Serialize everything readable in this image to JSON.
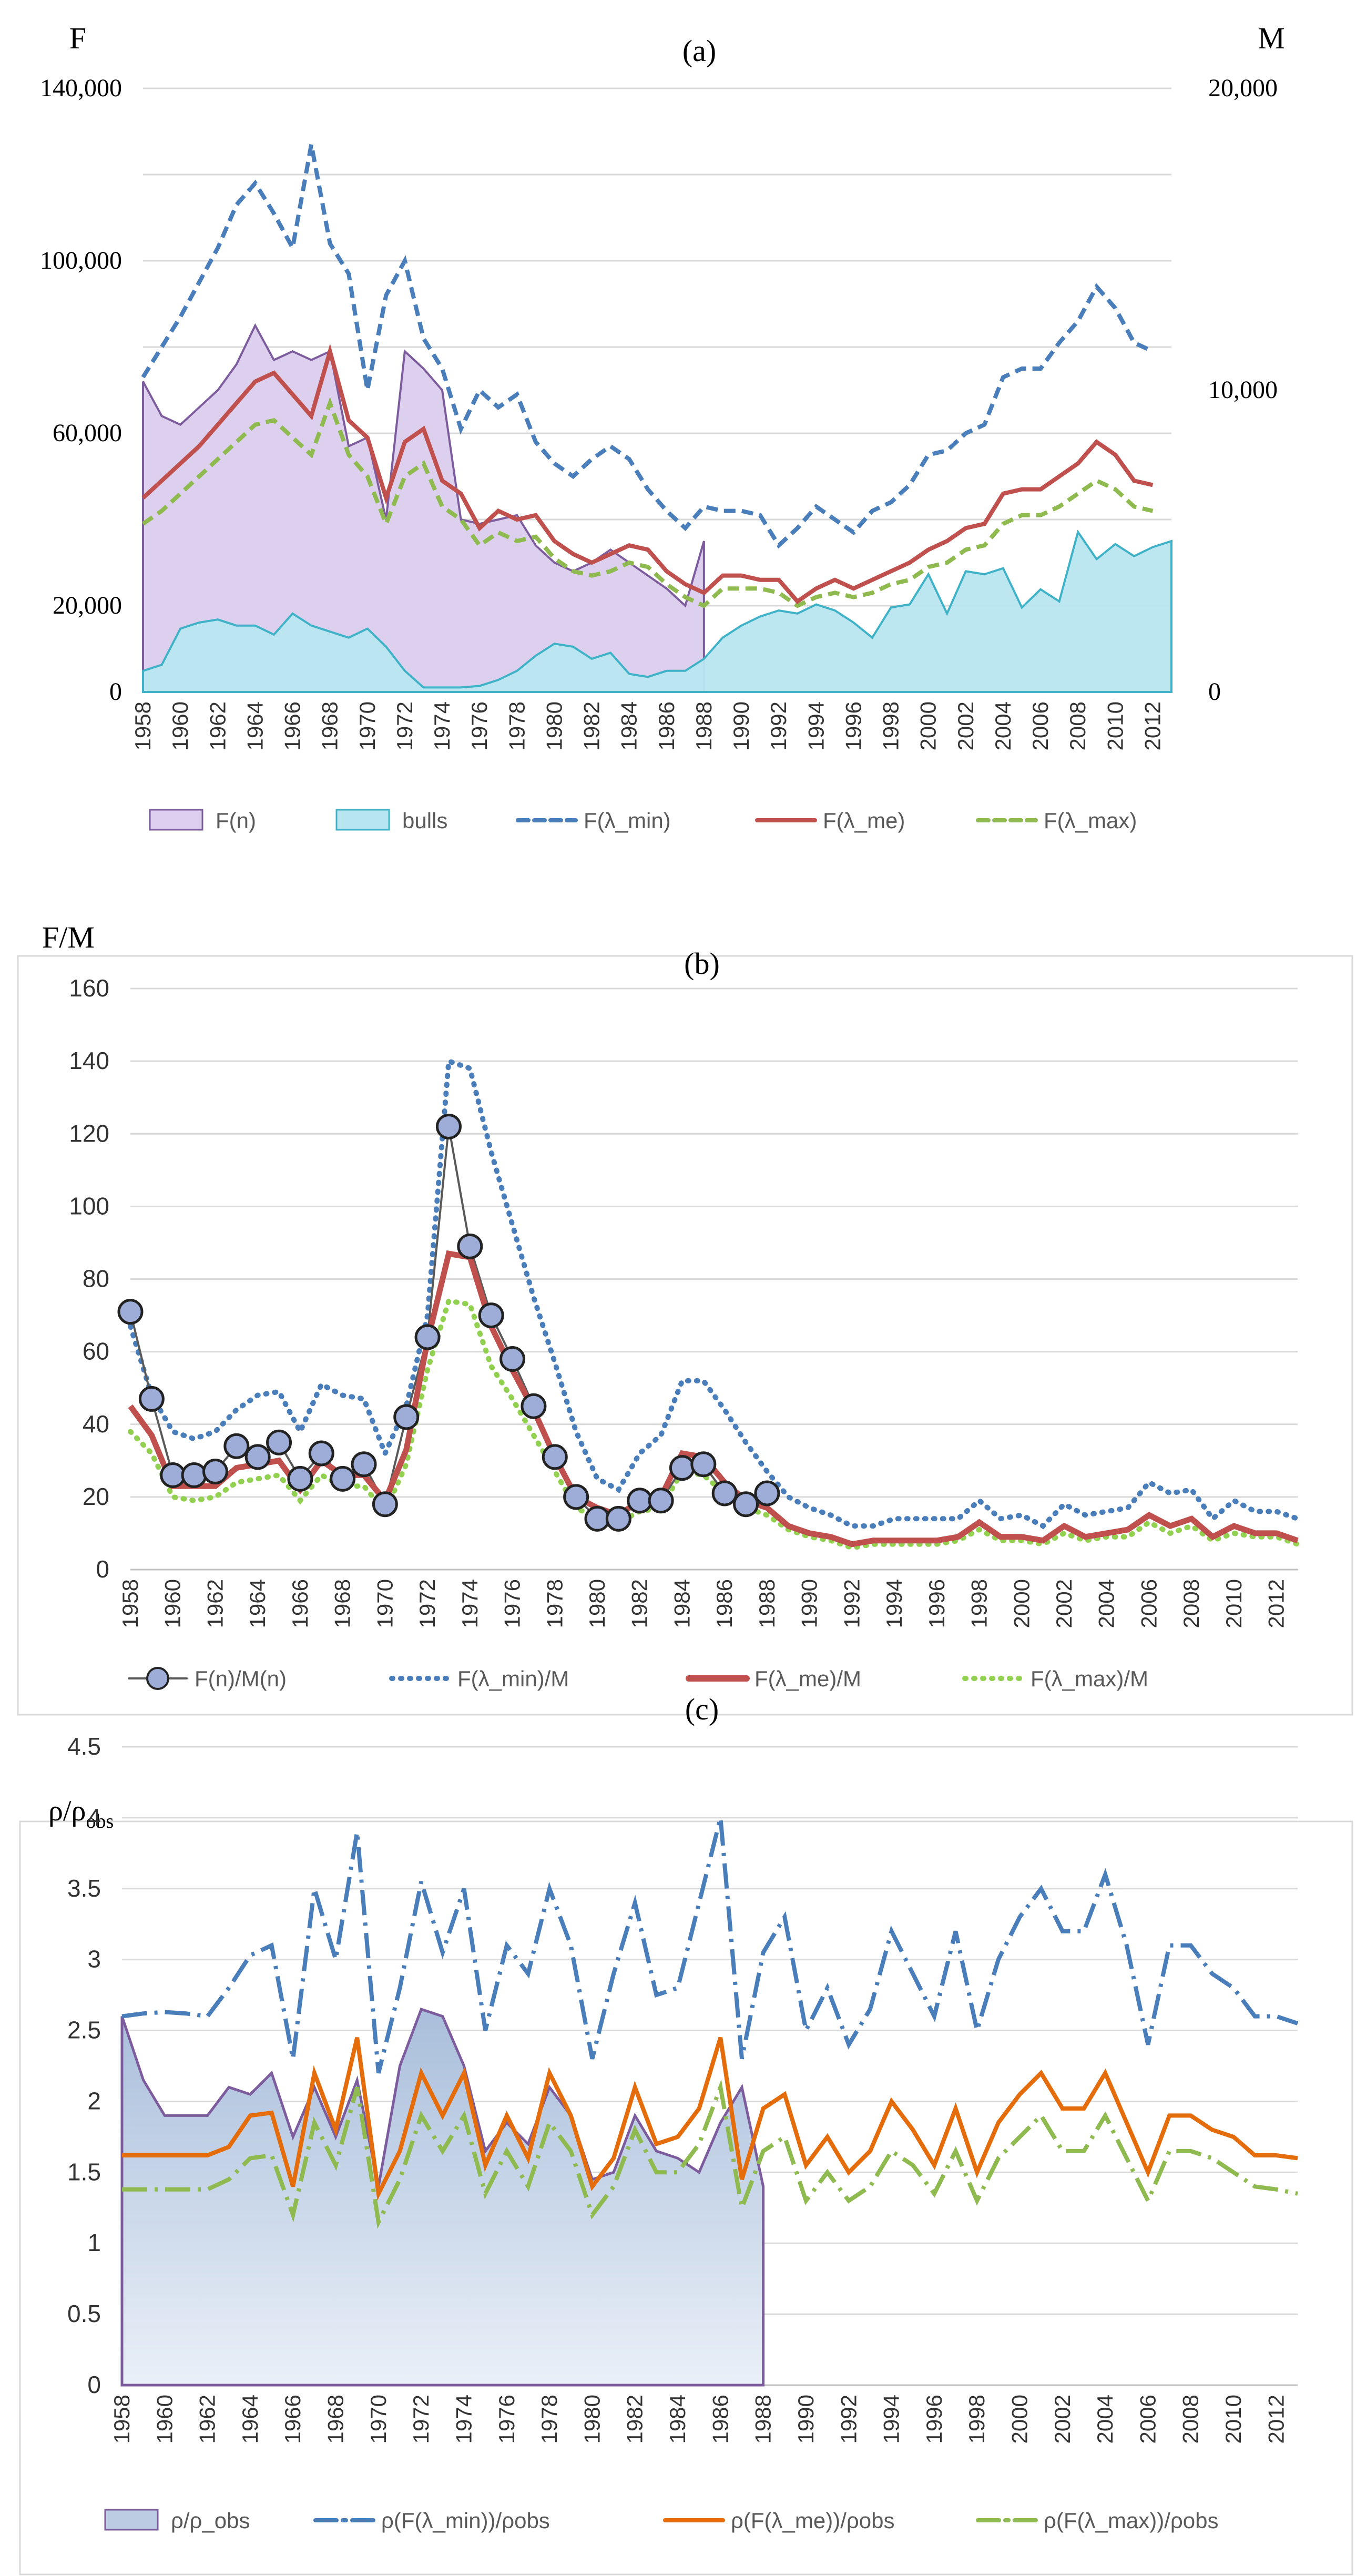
{
  "figure": {
    "years": [
      1958,
      1959,
      1960,
      1961,
      1962,
      1963,
      1964,
      1965,
      1966,
      1967,
      1968,
      1969,
      1970,
      1971,
      1972,
      1973,
      1974,
      1975,
      1976,
      1977,
      1978,
      1979,
      1980,
      1981,
      1982,
      1983,
      1984,
      1985,
      1986,
      1987,
      1988,
      1989,
      1990,
      1991,
      1992,
      1993,
      1994,
      1995,
      1996,
      1997,
      1998,
      1999,
      2000,
      2001,
      2002,
      2003,
      2004,
      2005,
      2006,
      2007,
      2008,
      2009,
      2010,
      2011,
      2012,
      2013
    ],
    "year_ticks": [
      "1958",
      "1960",
      "1962",
      "1964",
      "1966",
      "1968",
      "1970",
      "1972",
      "1974",
      "1976",
      "1978",
      "1980",
      "1982",
      "1984",
      "1986",
      "1988",
      "1990",
      "1992",
      "1994",
      "1996",
      "1998",
      "2000",
      "2002",
      "2004",
      "2006",
      "2008",
      "2010",
      "2012"
    ]
  },
  "chart_data": [
    {
      "type": "area",
      "panel_label": "(a)",
      "ylabel": "F",
      "ylabel_right": "M",
      "y_ticks": [
        "0",
        "20,000",
        "60,000",
        "100,000",
        "140,000"
      ],
      "y_right_ticks": [
        "0",
        "10,000",
        "20,000"
      ],
      "ylim": [
        0,
        140000
      ],
      "ylim_right": [
        0,
        20000
      ],
      "grid": true,
      "legend_position": "bottom",
      "colors": {
        "fn": "#7d5c9e",
        "fn_fill": "#ddd0ee",
        "bulls": "#3fb2c7",
        "bulls_fill": "#b8e6f0",
        "min": "#4a7ebb",
        "me": "#c0504d",
        "max": "#8fba4f"
      },
      "series": [
        {
          "name": "F(n)",
          "kind": "area",
          "axis": "left",
          "values": [
            72000,
            64000,
            62000,
            66000,
            70000,
            76000,
            85000,
            77000,
            79000,
            77000,
            79000,
            57000,
            59000,
            40000,
            79000,
            75000,
            70000,
            40000,
            39000,
            40000,
            41000,
            34000,
            30000,
            28000,
            30000,
            33000,
            30000,
            27000,
            24000,
            20000,
            35000,
            null,
            null,
            null,
            null,
            null,
            null,
            null,
            null,
            null,
            null,
            null,
            null,
            null,
            null,
            null,
            null,
            null,
            null,
            null,
            null,
            null,
            null,
            null,
            null,
            null
          ]
        },
        {
          "name": "bulls",
          "kind": "area",
          "axis": "right",
          "values": [
            700,
            900,
            2100,
            2300,
            2400,
            2200,
            2200,
            1900,
            2600,
            2200,
            2000,
            1800,
            2100,
            1500,
            700,
            150,
            150,
            150,
            200,
            400,
            700,
            1200,
            1600,
            1500,
            1100,
            1300,
            600,
            500,
            700,
            700,
            1100,
            1800,
            2200,
            2500,
            2700,
            2600,
            2900,
            2700,
            2300,
            1800,
            2800,
            2900,
            3900,
            2600,
            4000,
            3900,
            4100,
            2800,
            3400,
            3000,
            5300,
            4400,
            4900,
            4500,
            4800,
            5000
          ]
        },
        {
          "name": "F(λ_min)",
          "kind": "line",
          "dash": "dashed",
          "axis": "left",
          "values": [
            73000,
            80000,
            87000,
            95000,
            103000,
            113000,
            118000,
            111000,
            103000,
            127000,
            104000,
            97000,
            70000,
            92000,
            100000,
            82000,
            75000,
            61000,
            70000,
            66000,
            69000,
            58000,
            53000,
            50000,
            54000,
            57000,
            54000,
            47000,
            42000,
            38000,
            43000,
            42000,
            42000,
            41000,
            34000,
            38000,
            43000,
            40000,
            37000,
            42000,
            44000,
            48000,
            55000,
            56000,
            60000,
            62000,
            73000,
            75000,
            75000,
            81000,
            86000,
            94000,
            89000,
            81000,
            79000,
            null
          ]
        },
        {
          "name": "F(λ_me)",
          "kind": "line",
          "dash": "solid",
          "axis": "left",
          "values": [
            45000,
            49000,
            53000,
            57000,
            62000,
            67000,
            72000,
            74000,
            69000,
            64000,
            79000,
            63000,
            59000,
            45000,
            58000,
            61000,
            49000,
            46000,
            38000,
            42000,
            40000,
            41000,
            35000,
            32000,
            30000,
            32000,
            34000,
            33000,
            28000,
            25000,
            23000,
            27000,
            27000,
            26000,
            26000,
            21000,
            24000,
            26000,
            24000,
            26000,
            28000,
            30000,
            33000,
            35000,
            38000,
            39000,
            46000,
            47000,
            47000,
            50000,
            53000,
            58000,
            55000,
            49000,
            48000,
            null
          ]
        },
        {
          "name": "F(λ_max)",
          "kind": "line",
          "dash": "dashed",
          "axis": "left",
          "values": [
            39000,
            42000,
            46000,
            50000,
            54000,
            58000,
            62000,
            63000,
            59000,
            55000,
            67000,
            55000,
            50000,
            39000,
            50000,
            53000,
            43000,
            40000,
            34000,
            37000,
            35000,
            36000,
            31000,
            28000,
            27000,
            28000,
            30000,
            29000,
            25000,
            22000,
            20000,
            24000,
            24000,
            24000,
            23000,
            20000,
            22000,
            23000,
            22000,
            23000,
            25000,
            26000,
            29000,
            30000,
            33000,
            34000,
            39000,
            41000,
            41000,
            43000,
            46000,
            49000,
            47000,
            43000,
            42000,
            null
          ]
        }
      ]
    },
    {
      "type": "line",
      "panel_label": "(b)",
      "ylabel": "F/M",
      "y_ticks": [
        "0",
        "20",
        "40",
        "60",
        "80",
        "100",
        "120",
        "140",
        "160"
      ],
      "ylim": [
        0,
        160
      ],
      "grid": true,
      "legend_position": "bottom",
      "colors": {
        "n": "#595959",
        "n_marker": "#9dadd8",
        "min": "#4a7ebb",
        "me": "#c0504d",
        "max": "#92d050"
      },
      "series": [
        {
          "name": "F(n)/M(n)",
          "kind": "line-marker",
          "values": [
            71,
            47,
            26,
            26,
            27,
            34,
            31,
            35,
            25,
            32,
            25,
            29,
            18,
            42,
            64,
            122,
            89,
            70,
            58,
            45,
            31,
            20,
            14,
            14,
            19,
            19,
            28,
            29,
            21,
            18,
            21,
            null,
            null,
            null,
            null,
            null,
            null,
            null,
            null,
            null,
            null,
            null,
            null,
            null,
            null,
            null,
            null,
            null,
            null,
            null,
            null,
            null,
            null,
            null,
            null,
            null
          ]
        },
        {
          "name": "F(λ_min)/M",
          "kind": "line",
          "dash": "dotted",
          "values": [
            67,
            48,
            38,
            36,
            38,
            44,
            48,
            49,
            38,
            51,
            48,
            47,
            32,
            45,
            70,
            140,
            138,
            115,
            95,
            75,
            57,
            38,
            25,
            22,
            32,
            37,
            52,
            52,
            44,
            35,
            27,
            20,
            17,
            15,
            12,
            12,
            14,
            14,
            14,
            14,
            19,
            14,
            15,
            12,
            18,
            15,
            16,
            17,
            24,
            21,
            22,
            14,
            19,
            16,
            16,
            14
          ]
        },
        {
          "name": "F(λ_me)/M",
          "kind": "line",
          "dash": "solid",
          "values": [
            45,
            37,
            23,
            23,
            23,
            28,
            29,
            30,
            22,
            30,
            26,
            26,
            19,
            33,
            63,
            87,
            86,
            67,
            55,
            44,
            31,
            20,
            17,
            15,
            19,
            20,
            32,
            31,
            24,
            19,
            17,
            12,
            10,
            9,
            7,
            8,
            8,
            8,
            8,
            9,
            13,
            9,
            9,
            8,
            12,
            9,
            10,
            11,
            15,
            12,
            14,
            9,
            12,
            10,
            10,
            8
          ]
        },
        {
          "name": "F(λ_max)/M",
          "kind": "line",
          "dash": "dotted",
          "values": [
            38,
            32,
            20,
            19,
            20,
            24,
            25,
            26,
            19,
            26,
            23,
            23,
            16,
            29,
            55,
            74,
            73,
            56,
            47,
            37,
            27,
            17,
            14,
            13,
            16,
            17,
            27,
            26,
            21,
            17,
            15,
            11,
            9,
            8,
            6,
            7,
            7,
            7,
            7,
            8,
            11,
            8,
            8,
            7,
            10,
            8,
            9,
            9,
            13,
            10,
            12,
            8,
            10,
            9,
            9,
            7
          ]
        }
      ]
    },
    {
      "type": "line",
      "panel_label": "(c)",
      "ylabel": "ρ/ρ",
      "ylabel_sub": "obs",
      "y_ticks": [
        "0",
        "0.5",
        "1",
        "1.5",
        "2",
        "2.5",
        "3",
        "3.5",
        "4",
        "4.5"
      ],
      "ylim": [
        0,
        4.5
      ],
      "grid": true,
      "legend_position": "bottom",
      "colors": {
        "obs": "#7d5c9e",
        "obs_fill_top": "#a9bedb",
        "obs_fill_bottom": "#eaf0f8",
        "min": "#4a7ebb",
        "me": "#e46c0a",
        "max": "#8fba4f"
      },
      "series": [
        {
          "name": "ρ/ρ_obs",
          "kind": "area",
          "values": [
            2.6,
            2.15,
            1.9,
            1.9,
            1.9,
            2.1,
            2.05,
            2.2,
            1.75,
            2.1,
            1.75,
            2.15,
            1.4,
            2.25,
            2.65,
            2.6,
            2.25,
            1.65,
            1.85,
            1.7,
            2.1,
            1.9,
            1.45,
            1.5,
            1.9,
            1.65,
            1.6,
            1.5,
            1.85,
            2.1,
            1.4,
            null,
            null,
            null,
            null,
            null,
            null,
            null,
            null,
            null,
            null,
            null,
            null,
            null,
            null,
            null,
            null,
            null,
            null,
            null,
            null,
            null,
            null,
            null,
            null,
            null
          ]
        },
        {
          "name": "ρ(F(λ_min))/ρobs",
          "kind": "line",
          "dash": "dashdot",
          "values": [
            2.6,
            2.62,
            2.63,
            2.62,
            2.6,
            2.8,
            3.03,
            3.1,
            2.3,
            3.5,
            3.0,
            3.9,
            2.2,
            2.8,
            3.55,
            3.05,
            3.5,
            2.5,
            3.1,
            2.9,
            3.5,
            3.1,
            2.3,
            2.9,
            3.4,
            2.75,
            2.8,
            3.4,
            4.0,
            2.3,
            3.05,
            3.3,
            2.5,
            2.8,
            2.4,
            2.65,
            3.2,
            2.9,
            2.6,
            3.2,
            2.5,
            3.0,
            3.3,
            3.5,
            3.2,
            3.2,
            3.6,
            3.1,
            2.4,
            3.1,
            3.1,
            2.9,
            2.8,
            2.6,
            2.6,
            2.55
          ]
        },
        {
          "name": "ρ(F(λ_me))/ρobs",
          "kind": "line",
          "dash": "solid",
          "values": [
            1.62,
            1.62,
            1.62,
            1.62,
            1.62,
            1.68,
            1.9,
            1.92,
            1.4,
            2.2,
            1.8,
            2.45,
            1.35,
            1.65,
            2.2,
            1.9,
            2.2,
            1.55,
            1.9,
            1.6,
            2.2,
            1.9,
            1.4,
            1.6,
            2.1,
            1.7,
            1.75,
            1.95,
            2.45,
            1.45,
            1.95,
            2.05,
            1.55,
            1.75,
            1.5,
            1.65,
            2.0,
            1.8,
            1.55,
            1.95,
            1.5,
            1.85,
            2.05,
            2.2,
            1.95,
            1.95,
            2.2,
            1.85,
            1.5,
            1.9,
            1.9,
            1.8,
            1.75,
            1.62,
            1.62,
            1.6
          ]
        },
        {
          "name": "ρ(F(λ_max))/ρobs",
          "kind": "line",
          "dash": "dashdot",
          "values": [
            1.38,
            1.38,
            1.38,
            1.38,
            1.38,
            1.45,
            1.6,
            1.62,
            1.2,
            1.85,
            1.55,
            2.1,
            1.15,
            1.45,
            1.9,
            1.65,
            1.9,
            1.35,
            1.65,
            1.4,
            1.85,
            1.65,
            1.2,
            1.4,
            1.8,
            1.5,
            1.5,
            1.7,
            2.1,
            1.25,
            1.65,
            1.75,
            1.3,
            1.5,
            1.3,
            1.4,
            1.65,
            1.55,
            1.35,
            1.65,
            1.3,
            1.6,
            1.75,
            1.9,
            1.65,
            1.65,
            1.9,
            1.6,
            1.3,
            1.65,
            1.65,
            1.6,
            1.5,
            1.4,
            1.38,
            1.35
          ]
        }
      ]
    }
  ]
}
